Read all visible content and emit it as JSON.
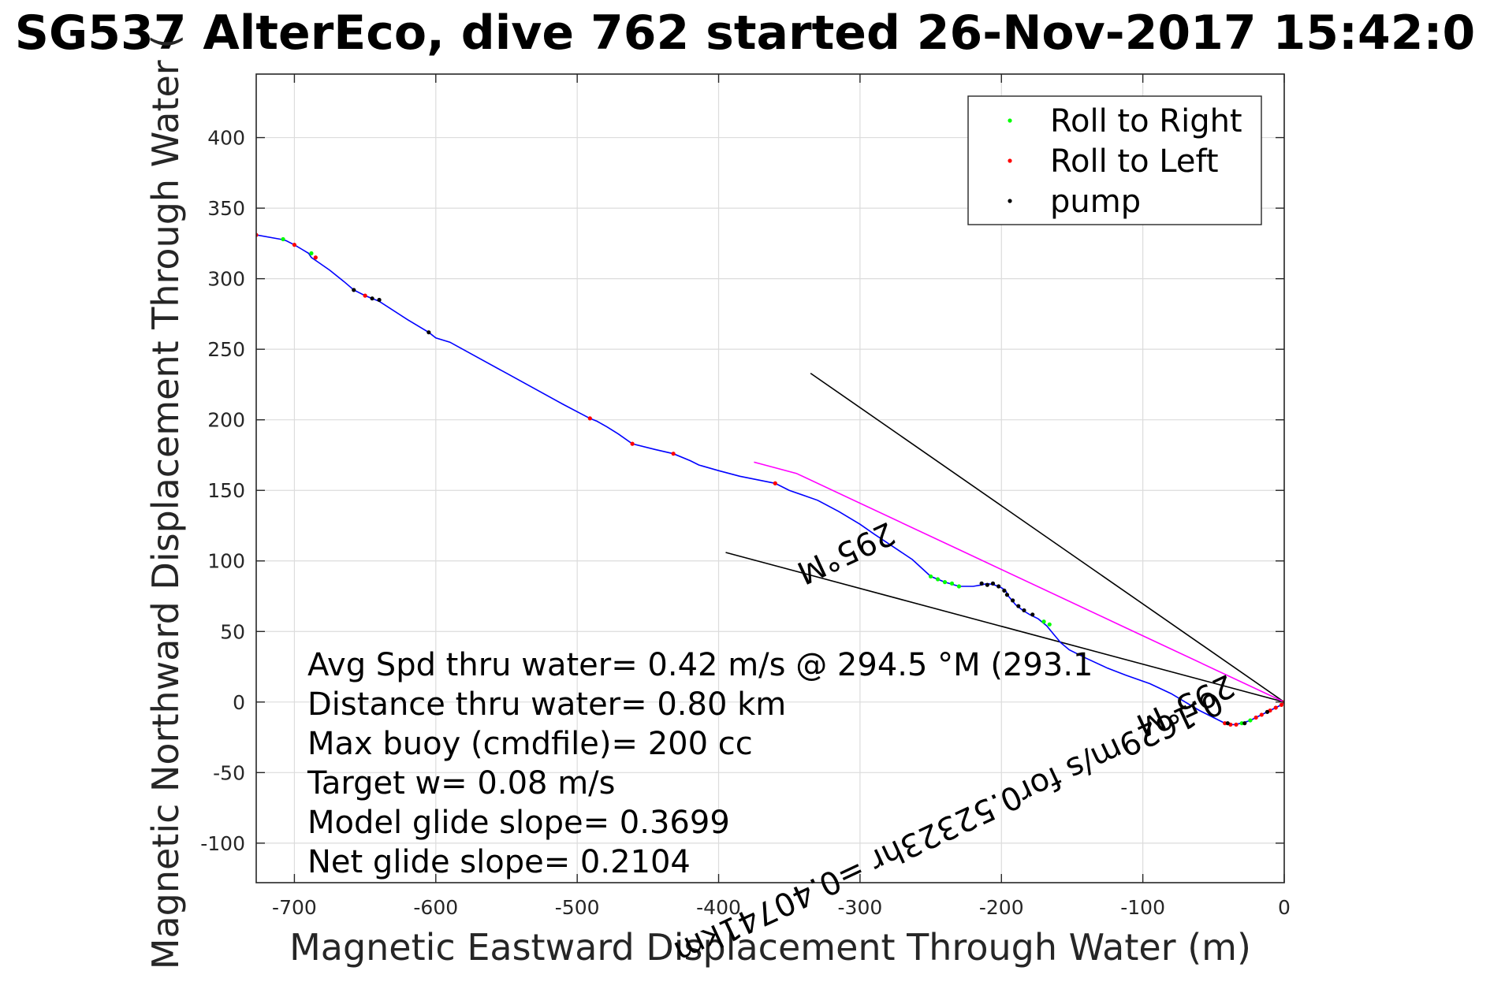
{
  "chart_data": {
    "type": "line",
    "title": "SG537 AlterEco, dive 762 started 26-Nov-2017 15:42:0",
    "xlabel": "Magnetic Eastward Displacement Through Water (m)",
    "ylabel": "Magnetic Northward Displacement Through Water (",
    "xlim": [
      -727,
      0
    ],
    "ylim": [
      -128,
      445
    ],
    "xticks": [
      -700,
      -600,
      -500,
      -400,
      -300,
      -200,
      -100,
      0
    ],
    "yticks": [
      400,
      350,
      300,
      250,
      200,
      150,
      100,
      50,
      0,
      -50,
      -100
    ],
    "grid": true,
    "legend": {
      "placement": "top-right",
      "entries": [
        {
          "label": "Roll to Right",
          "color": "#00ff00"
        },
        {
          "label": "Roll to Left",
          "color": "#ff0000"
        },
        {
          "label": "pump",
          "color": "#000000"
        }
      ]
    },
    "series": [
      {
        "name": "track",
        "color": "#0000ff",
        "points": [
          [
            0,
            0
          ],
          [
            -2,
            -2
          ],
          [
            -6,
            -4
          ],
          [
            -10,
            -6
          ],
          [
            -16,
            -9
          ],
          [
            -24,
            -13
          ],
          [
            -30,
            -15
          ],
          [
            -36,
            -16
          ],
          [
            -42,
            -15
          ],
          [
            -50,
            -11
          ],
          [
            -60,
            -6
          ],
          [
            -70,
            0
          ],
          [
            -75,
            3
          ],
          [
            -80,
            6
          ],
          [
            -95,
            13
          ],
          [
            -112,
            19
          ],
          [
            -125,
            24
          ],
          [
            -140,
            31
          ],
          [
            -152,
            37
          ],
          [
            -158,
            42
          ],
          [
            -163,
            48
          ],
          [
            -168,
            54
          ],
          [
            -174,
            59
          ],
          [
            -180,
            62
          ],
          [
            -185,
            65
          ],
          [
            -190,
            69
          ],
          [
            -195,
            75
          ],
          [
            -197,
            79
          ],
          [
            -200,
            81
          ],
          [
            -205,
            83
          ],
          [
            -210,
            84
          ],
          [
            -214,
            83
          ],
          [
            -220,
            82
          ],
          [
            -230,
            82
          ],
          [
            -240,
            85
          ],
          [
            -250,
            89
          ],
          [
            -263,
            101
          ],
          [
            -275,
            109
          ],
          [
            -290,
            119
          ],
          [
            -300,
            126
          ],
          [
            -315,
            135
          ],
          [
            -330,
            143
          ],
          [
            -350,
            150
          ],
          [
            -360,
            155
          ],
          [
            -370,
            157
          ],
          [
            -385,
            160
          ],
          [
            -400,
            164
          ],
          [
            -414,
            168
          ],
          [
            -420,
            171
          ],
          [
            -432,
            176
          ],
          [
            -445,
            179
          ],
          [
            -461,
            183
          ],
          [
            -471,
            190
          ],
          [
            -479,
            195
          ],
          [
            -486,
            199
          ],
          [
            -491,
            201
          ],
          [
            -510,
            211
          ],
          [
            -550,
            233
          ],
          [
            -590,
            255
          ],
          [
            -600,
            258
          ],
          [
            -605,
            262
          ],
          [
            -620,
            271
          ],
          [
            -640,
            284
          ],
          [
            -645,
            286
          ],
          [
            -650,
            288
          ],
          [
            -658,
            292
          ],
          [
            -665,
            298
          ],
          [
            -675,
            306
          ],
          [
            -685,
            313
          ],
          [
            -688,
            315
          ],
          [
            -690,
            318
          ],
          [
            -695,
            321
          ],
          [
            -700,
            324
          ],
          [
            -706,
            327
          ],
          [
            -710,
            328
          ],
          [
            -727,
            331
          ]
        ]
      },
      {
        "name": "depth-averaged current",
        "color": "#ff00ff",
        "points": [
          [
            0,
            0
          ],
          [
            -115,
            54
          ],
          [
            -230,
            108
          ],
          [
            -345,
            162
          ],
          [
            -375,
            170
          ]
        ]
      }
    ],
    "markers": {
      "roll_right": {
        "color": "#00ff00",
        "points": [
          [
            -708,
            328
          ],
          [
            -688,
            318
          ],
          [
            -250,
            89
          ],
          [
            -245,
            87
          ],
          [
            -240,
            85
          ],
          [
            -235,
            84
          ],
          [
            -230,
            82
          ],
          [
            -170,
            57
          ],
          [
            -166,
            55
          ],
          [
            -30,
            -15
          ],
          [
            -24,
            -13
          ]
        ]
      },
      "roll_left": {
        "color": "#ff0000",
        "points": [
          [
            -727,
            331
          ],
          [
            -700,
            324
          ],
          [
            -685,
            315
          ],
          [
            -650,
            288
          ],
          [
            -491,
            201
          ],
          [
            -461,
            183
          ],
          [
            -432,
            176
          ],
          [
            -360,
            155
          ],
          [
            -42,
            -15
          ],
          [
            -38,
            -16
          ],
          [
            -34,
            -16
          ],
          [
            -20,
            -11
          ],
          [
            -16,
            -9
          ],
          [
            -10,
            -6
          ],
          [
            -6,
            -4
          ],
          [
            -2,
            -2
          ],
          [
            0,
            0
          ]
        ]
      },
      "pump": {
        "color": "#000000",
        "points": [
          [
            -658,
            292
          ],
          [
            -645,
            286
          ],
          [
            -640,
            285
          ],
          [
            -605,
            262
          ],
          [
            -214,
            84
          ],
          [
            -210,
            83
          ],
          [
            -206,
            84
          ],
          [
            -202,
            82
          ],
          [
            -198,
            79
          ],
          [
            -196,
            76
          ],
          [
            -192,
            72
          ],
          [
            -188,
            68
          ],
          [
            -184,
            65
          ],
          [
            -178,
            62
          ],
          [
            -40,
            -15
          ],
          [
            -28,
            -15
          ],
          [
            -12,
            -7
          ]
        ]
      }
    },
    "reference_lines": {
      "color": "#000000",
      "lines": [
        {
          "from": [
            0,
            0
          ],
          "to": [
            -335,
            233
          ]
        },
        {
          "from": [
            0,
            0
          ],
          "to": [
            -395,
            106
          ]
        }
      ]
    },
    "flipped_annotations": [
      {
        "text": "0.1629m/s for0.52323hr =0.40741km",
        "anchor": [
          -48,
          8
        ],
        "angle_deg": 155
      },
      {
        "text": "295°M",
        "anchor": [
          -40,
          20
        ],
        "angle_deg": 155
      },
      {
        "text": "295°M",
        "anchor": [
          -280,
          128
        ],
        "angle_deg": 155
      }
    ],
    "stats_text": [
      "Avg Spd thru water=  0.42 m/s @ 294.5 °M (293.1",
      "Distance thru water=  0.80 km",
      "Max buoy (cmdfile)= 200 cc",
      "Target w= 0.08 m/s",
      "Model glide slope= 0.3699",
      "Net glide slope= 0.2104"
    ]
  }
}
